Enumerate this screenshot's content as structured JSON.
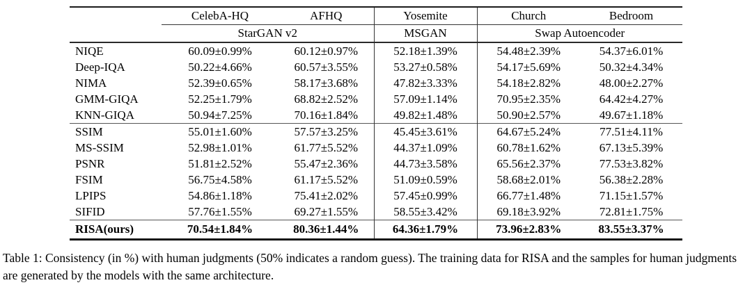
{
  "table": {
    "dataset_headers": [
      "CelebA-HQ",
      "AFHQ",
      "Yosemite",
      "Church",
      "Bedroom"
    ],
    "model_headers": [
      {
        "label": "StarGAN v2",
        "span": 2
      },
      {
        "label": "MSGAN",
        "span": 1
      },
      {
        "label": "Swap Autoencoder",
        "span": 2
      }
    ],
    "rows": [
      {
        "metric": "NIQE",
        "section": 1,
        "values": [
          "60.09±0.99%",
          "60.12±0.97%",
          "52.18±1.39%",
          "54.48±2.39%",
          "54.37±6.01%"
        ]
      },
      {
        "metric": "Deep-IQA",
        "section": 1,
        "values": [
          "50.22±4.66%",
          "60.57±3.55%",
          "53.27±0.58%",
          "54.17±5.69%",
          "50.32±4.34%"
        ]
      },
      {
        "metric": "NIMA",
        "section": 1,
        "values": [
          "52.39±0.65%",
          "58.17±3.68%",
          "47.82±3.33%",
          "54.18±2.82%",
          "48.00±2.27%"
        ]
      },
      {
        "metric": "GMM-GIQA",
        "section": 1,
        "values": [
          "52.25±1.79%",
          "68.82±2.52%",
          "57.09±1.14%",
          "70.95±2.35%",
          "64.42±4.27%"
        ]
      },
      {
        "metric": "KNN-GIQA",
        "section": 1,
        "values": [
          "50.94±7.25%",
          "70.16±1.84%",
          "49.82±1.48%",
          "50.90±2.57%",
          "49.67±1.18%"
        ]
      },
      {
        "metric": "SSIM",
        "section": 2,
        "values": [
          "55.01±1.60%",
          "57.57±3.25%",
          "45.45±3.61%",
          "64.67±5.24%",
          "77.51±4.11%"
        ]
      },
      {
        "metric": "MS-SSIM",
        "section": 2,
        "values": [
          "52.98±1.01%",
          "61.77±5.52%",
          "44.37±1.09%",
          "60.78±1.62%",
          "67.13±5.39%"
        ]
      },
      {
        "metric": "PSNR",
        "section": 2,
        "values": [
          "51.81±2.52%",
          "55.47±2.36%",
          "44.73±3.58%",
          "65.56±2.37%",
          "77.53±3.82%"
        ]
      },
      {
        "metric": "FSIM",
        "section": 2,
        "values": [
          "56.75±4.58%",
          "61.17±5.52%",
          "51.09±0.59%",
          "58.68±2.01%",
          "56.38±2.28%"
        ]
      },
      {
        "metric": "LPIPS",
        "section": 2,
        "values": [
          "54.86±1.18%",
          "75.41±2.02%",
          "57.45±0.99%",
          "66.77±1.48%",
          "71.15±1.57%"
        ]
      },
      {
        "metric": "SIFID",
        "section": 2,
        "values": [
          "57.76±1.55%",
          "69.27±1.55%",
          "58.55±3.42%",
          "69.18±3.92%",
          "72.81±1.75%"
        ]
      },
      {
        "metric": "RISA(ours)",
        "section": 3,
        "bold": true,
        "values": [
          "70.54±1.84%",
          "80.36±1.44%",
          "64.36±1.79%",
          "73.96±2.83%",
          "83.55±3.37%"
        ]
      }
    ]
  },
  "caption": "Table 1: Consistency (in %) with human judgments (50% indicates a random guess). The training data for RISA and the samples for human judgments are generated by the models with the same architecture."
}
